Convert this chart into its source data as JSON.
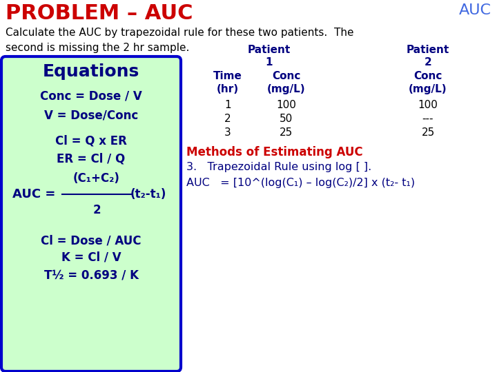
{
  "title": "PROBLEM – AUC",
  "title_color": "#CC0000",
  "auc_label": "AUC",
  "auc_color": "#4169E1",
  "bg_color": "#FFFFFF",
  "subtitle_line1": "Calculate the AUC by trapezoidal rule for these two patients.  The",
  "subtitle_line2": "second is missing the 2 hr sample.",
  "subtitle_color": "#000000",
  "equations_box_bg": "#CCFFCC",
  "equations_box_border": "#0000CC",
  "equations_title": "Equations",
  "equations_title_color": "#000080",
  "equations_lines": [
    "Conc = Dose / V",
    "V = Dose/Conc",
    "Cl = Q x ER",
    "ER = Cl / Q"
  ],
  "auc_eq_frac_num": "(C₁+C₂)",
  "auc_eq_frac_den": "2",
  "auc_eq_right": "(t₂-t₁)",
  "bottom_lines": [
    "Cl = Dose / AUC",
    "K = Cl / V",
    "T½ = 0.693 / K"
  ],
  "eq_color": "#000080",
  "patient_header_color": "#000080",
  "methods_color": "#CC0000",
  "methods_text": "Methods of Estimating AUC",
  "rule3_text": "3.   Trapezoidal Rule using log [ ].",
  "rule3_color": "#000080",
  "auc_formula": "AUC   = [10^(log(C₁) – log(C₂)/2] x (t₂- t₁)",
  "auc_formula_color": "#000080"
}
